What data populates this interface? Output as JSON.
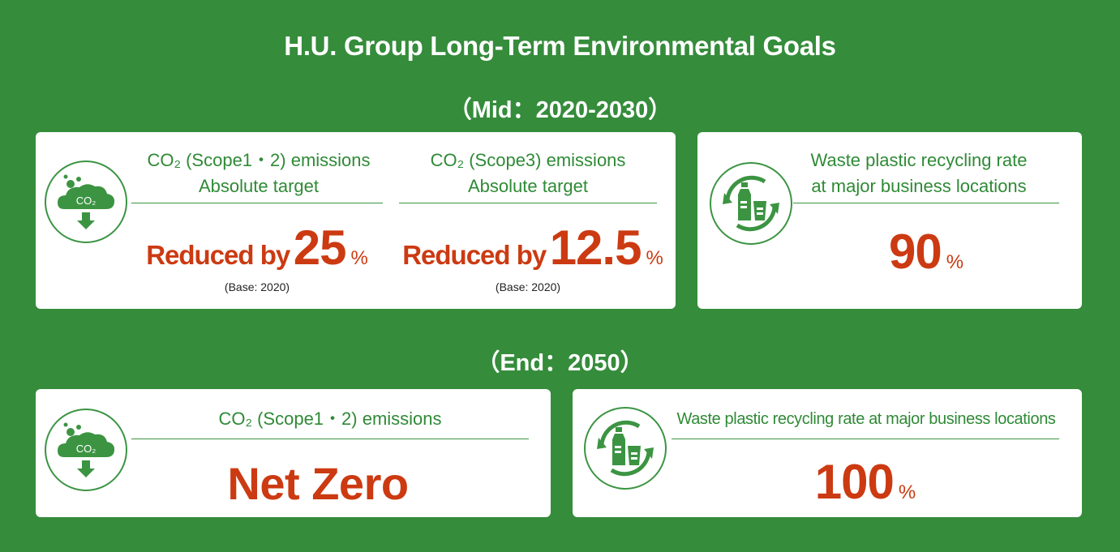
{
  "title": "H.U. Group Long-Term Environmental Goals",
  "mid": {
    "heading": "（Mid：2020-2030）",
    "scope12": {
      "line1": "CO₂ (Scope1・2) emissions",
      "line2": "Absolute target",
      "prefix": "Reduced by",
      "value": "25",
      "unit": "%",
      "base": "(Base: 2020)"
    },
    "scope3": {
      "line1": "CO₂ (Scope3) emissions",
      "line2": "Absolute target",
      "prefix": "Reduced by",
      "value": "12.5",
      "unit": "%",
      "base": "(Base: 2020)"
    },
    "plastic": {
      "line1": "Waste plastic recycling rate",
      "line2": "at major business locations",
      "value": "90",
      "unit": "%"
    }
  },
  "end": {
    "heading": "（End：2050）",
    "scope12": {
      "line1": "CO₂ (Scope1・2) emissions",
      "value": "Net Zero"
    },
    "plastic": {
      "line1": "Waste plastic recycling rate at major business locations",
      "value": "100",
      "unit": "%"
    }
  },
  "icons": {
    "co2_badge": "CO₂",
    "co2": "co2-cloud-down-icon",
    "recycle": "recycle-bottle-icon"
  },
  "colors": {
    "background": "#358c3b",
    "accent_green": "#2f8a36",
    "accent_red": "#cc3a12"
  }
}
